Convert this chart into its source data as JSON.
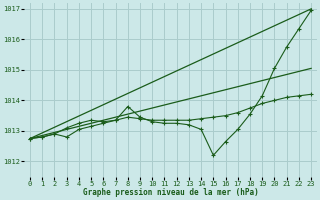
{
  "title": "Graphe pression niveau de la mer (hPa)",
  "bg_color": "#cce8e8",
  "grid_color": "#aacccc",
  "line_color": "#1a5c1a",
  "xlim": [
    -0.5,
    23.5
  ],
  "ylim": [
    1011.5,
    1017.2
  ],
  "yticks": [
    1012,
    1013,
    1014,
    1015,
    1016,
    1017
  ],
  "xticks": [
    0,
    1,
    2,
    3,
    4,
    5,
    6,
    7,
    8,
    9,
    10,
    11,
    12,
    13,
    14,
    15,
    16,
    17,
    18,
    19,
    20,
    21,
    22,
    23
  ],
  "series1_nomarker": {
    "x": [
      0,
      23
    ],
    "y": [
      1012.75,
      1015.05
    ]
  },
  "series2_nomarker": {
    "x": [
      0,
      23
    ],
    "y": [
      1012.75,
      1017.0
    ]
  },
  "series3_marker": {
    "x": [
      0,
      1,
      2,
      3,
      4,
      5,
      6,
      7,
      8,
      9,
      10,
      11,
      12,
      13,
      14,
      15,
      16,
      17,
      18,
      19,
      20,
      21,
      22,
      23
    ],
    "y": [
      1012.75,
      1012.8,
      1012.9,
      1012.8,
      1013.05,
      1013.15,
      1013.25,
      1013.35,
      1013.8,
      1013.45,
      1013.3,
      1013.25,
      1013.25,
      1013.2,
      1013.05,
      1012.2,
      1012.65,
      1013.05,
      1013.55,
      1014.15,
      1015.05,
      1015.75,
      1016.35,
      1016.95
    ]
  },
  "series4_marker": {
    "x": [
      0,
      1,
      2,
      3,
      4,
      5,
      6,
      7,
      8,
      9,
      10,
      11,
      12,
      13,
      14,
      15,
      16,
      17,
      18,
      19,
      20,
      21,
      22,
      23
    ],
    "y": [
      1012.75,
      1012.8,
      1012.9,
      1013.1,
      1013.25,
      1013.35,
      1013.3,
      1013.35,
      1013.45,
      1013.4,
      1013.35,
      1013.35,
      1013.35,
      1013.35,
      1013.4,
      1013.45,
      1013.5,
      1013.6,
      1013.75,
      1013.9,
      1014.0,
      1014.1,
      1014.15,
      1014.2
    ]
  }
}
